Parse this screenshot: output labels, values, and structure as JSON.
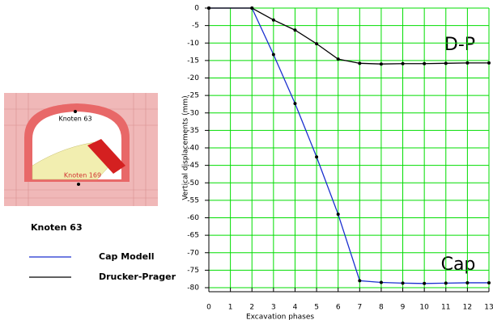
{
  "chart_data": {
    "type": "line",
    "x": [
      0,
      2,
      3,
      4,
      5,
      6,
      7,
      8,
      9,
      10,
      11,
      12,
      13
    ],
    "series": [
      {
        "name": "Cap Modell",
        "color": "#1a2fcf",
        "values": [
          0,
          0,
          -13.3,
          -27.3,
          -42.6,
          -59,
          -78,
          -78.5,
          -78.7,
          -78.8,
          -78.7,
          -78.6,
          -78.6
        ]
      },
      {
        "name": "Drucker-Prager",
        "color": "#000000",
        "values": [
          0,
          0,
          -3.4,
          -6.3,
          -10.2,
          -14.6,
          -15.8,
          -16,
          -15.9,
          -15.9,
          -15.8,
          -15.7,
          -15.7
        ]
      }
    ],
    "xlim": [
      0,
      13
    ],
    "xticks": [
      0,
      1,
      2,
      3,
      4,
      5,
      6,
      7,
      8,
      9,
      10,
      11,
      12,
      13
    ],
    "ylim": [
      -80,
      0
    ],
    "yticks": [
      0,
      -5,
      -10,
      -15,
      -20,
      -25,
      -30,
      -35,
      -40,
      -45,
      -50,
      -55,
      -60,
      -65,
      -70,
      -75,
      -80
    ],
    "grid": true,
    "xlabel": "Excavation phases",
    "ylabel": "Vertical displacements (mm)",
    "annotations": [
      "D-P",
      "Cap"
    ],
    "legend_title": "Knoten 63",
    "inset_labels": [
      "Knoten 63",
      "Knoten 169"
    ]
  }
}
